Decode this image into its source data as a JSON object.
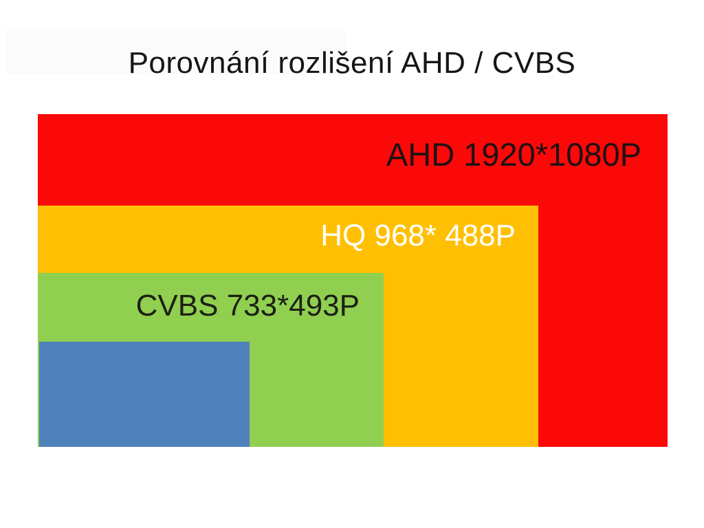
{
  "title": "Porovnání rozlišení AHD / CVBS",
  "diagram": {
    "layers": [
      {
        "name": "ahd",
        "label": "AHD 1920*1080P",
        "color": "#fb0808",
        "text_color": "#1e1212"
      },
      {
        "name": "hq",
        "label": "HQ 968* 488P",
        "color": "#ffc004",
        "text_color": "#ffffff"
      },
      {
        "name": "cvbs",
        "label": "CVBS 733*493P",
        "color": "#90cf50",
        "text_color": "#1c2014"
      },
      {
        "name": "blue",
        "label": "",
        "color": "#4f81bd",
        "text_color": ""
      }
    ]
  }
}
